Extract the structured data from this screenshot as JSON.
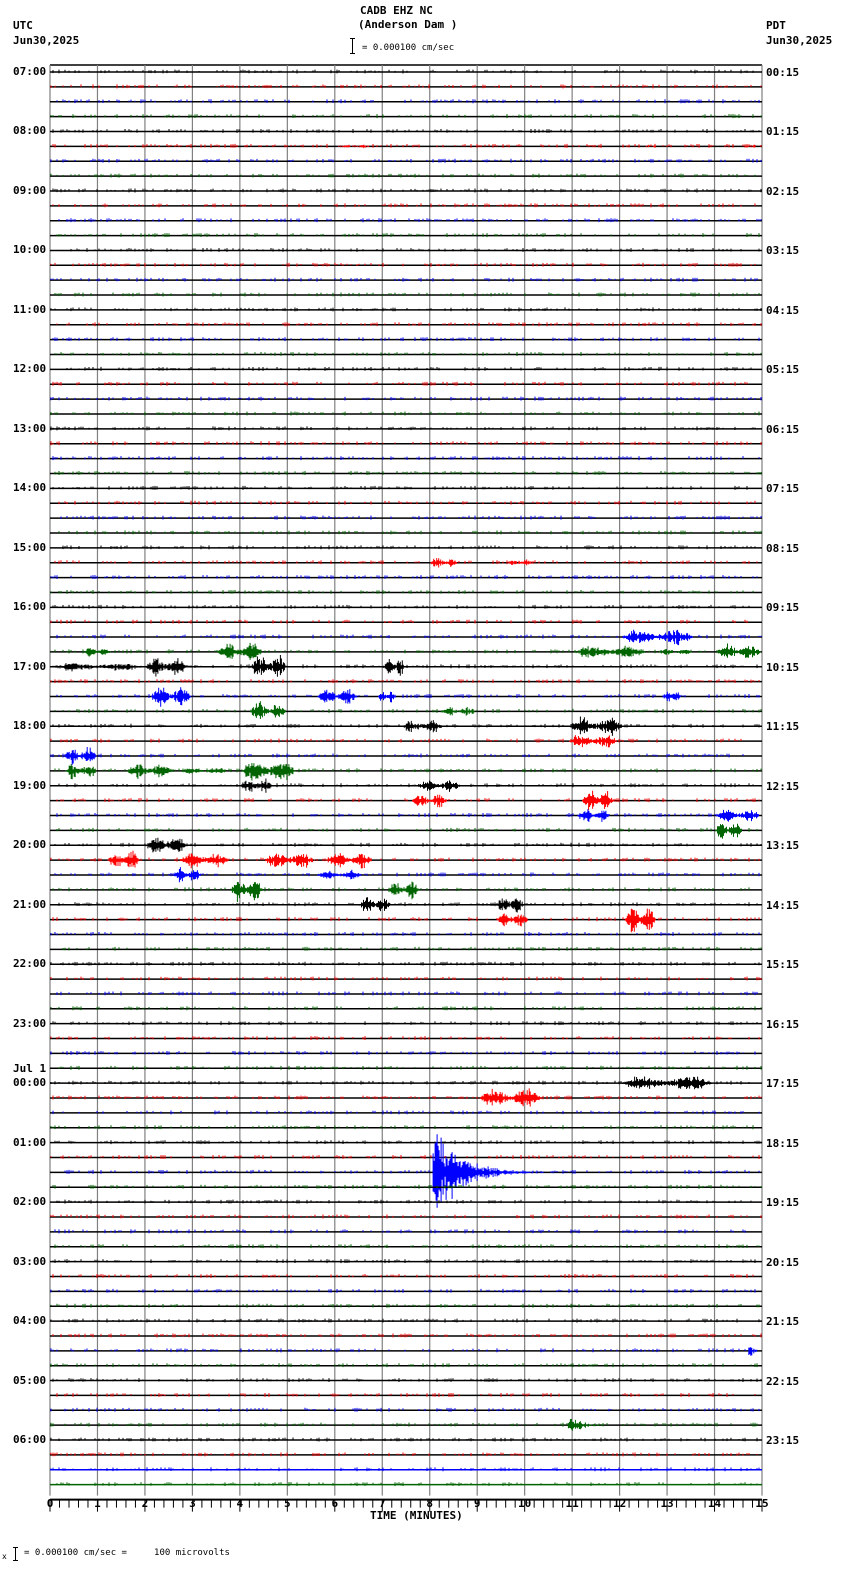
{
  "header": {
    "station": "CADB EHZ NC",
    "location": "(Anderson Dam )",
    "left_tz": "UTC",
    "left_date": "Jun30,2025",
    "right_tz": "PDT",
    "right_date": "Jun30,2025",
    "scale_label": "= 0.000100 cm/sec"
  },
  "footer": {
    "scale_text": "= 0.000100 cm/sec =     100 microvolts"
  },
  "chart_data": {
    "type": "line",
    "title": "CADB EHZ NC (Anderson Dam )",
    "subtitle": "= 0.000100 cm/sec",
    "xlabel": "TIME (MINUTES)",
    "ylabel": "",
    "xlim": [
      0,
      15
    ],
    "x_ticks": [
      "0",
      "1",
      "2",
      "3",
      "4",
      "5",
      "6",
      "7",
      "8",
      "9",
      "10",
      "11",
      "12",
      "13",
      "14",
      "15"
    ],
    "grid": true,
    "trace_minutes": 15,
    "trace_colors": [
      "#000000",
      "#ff0000",
      "#0000ff",
      "#006400"
    ],
    "left_labels": [
      {
        "row": 0,
        "text": "07:00"
      },
      {
        "row": 4,
        "text": "08:00"
      },
      {
        "row": 8,
        "text": "09:00"
      },
      {
        "row": 12,
        "text": "10:00"
      },
      {
        "row": 16,
        "text": "11:00"
      },
      {
        "row": 20,
        "text": "12:00"
      },
      {
        "row": 24,
        "text": "13:00"
      },
      {
        "row": 28,
        "text": "14:00"
      },
      {
        "row": 32,
        "text": "15:00"
      },
      {
        "row": 36,
        "text": "16:00"
      },
      {
        "row": 40,
        "text": "17:00"
      },
      {
        "row": 44,
        "text": "18:00"
      },
      {
        "row": 48,
        "text": "19:00"
      },
      {
        "row": 52,
        "text": "20:00"
      },
      {
        "row": 56,
        "text": "21:00"
      },
      {
        "row": 60,
        "text": "22:00"
      },
      {
        "row": 64,
        "text": "23:00"
      },
      {
        "row": 68,
        "text": "00:00",
        "date": "Jul 1"
      },
      {
        "row": 72,
        "text": "01:00"
      },
      {
        "row": 76,
        "text": "02:00"
      },
      {
        "row": 80,
        "text": "03:00"
      },
      {
        "row": 84,
        "text": "04:00"
      },
      {
        "row": 88,
        "text": "05:00"
      },
      {
        "row": 92,
        "text": "06:00"
      }
    ],
    "right_labels": [
      {
        "row": 0,
        "text": "00:15"
      },
      {
        "row": 4,
        "text": "01:15"
      },
      {
        "row": 8,
        "text": "02:15"
      },
      {
        "row": 12,
        "text": "03:15"
      },
      {
        "row": 16,
        "text": "04:15"
      },
      {
        "row": 20,
        "text": "05:15"
      },
      {
        "row": 24,
        "text": "06:15"
      },
      {
        "row": 28,
        "text": "07:15"
      },
      {
        "row": 32,
        "text": "08:15"
      },
      {
        "row": 36,
        "text": "09:15"
      },
      {
        "row": 40,
        "text": "10:15"
      },
      {
        "row": 44,
        "text": "11:15"
      },
      {
        "row": 48,
        "text": "12:15"
      },
      {
        "row": 52,
        "text": "13:15"
      },
      {
        "row": 56,
        "text": "14:15"
      },
      {
        "row": 60,
        "text": "15:15"
      },
      {
        "row": 64,
        "text": "16:15"
      },
      {
        "row": 68,
        "text": "17:15"
      },
      {
        "row": 72,
        "text": "18:15"
      },
      {
        "row": 76,
        "text": "19:15"
      },
      {
        "row": 80,
        "text": "20:15"
      },
      {
        "row": 84,
        "text": "21:15"
      },
      {
        "row": 88,
        "text": "22:15"
      },
      {
        "row": 92,
        "text": "23:15"
      }
    ],
    "row_count": 96,
    "events": [
      {
        "row": 5,
        "start_min": 6.0,
        "end_min": 6.8,
        "amp": 2
      },
      {
        "row": 5,
        "start_min": 12.5,
        "end_min": 12.8,
        "amp": 2
      },
      {
        "row": 5,
        "start_min": 14.6,
        "end_min": 14.9,
        "amp": 2
      },
      {
        "row": 33,
        "start_min": 8.0,
        "end_min": 8.6,
        "amp": 7
      },
      {
        "row": 33,
        "start_min": 9.6,
        "end_min": 10.2,
        "amp": 5
      },
      {
        "row": 38,
        "start_min": 12.0,
        "end_min": 13.6,
        "amp": 10
      },
      {
        "row": 39,
        "start_min": 0.7,
        "end_min": 1.3,
        "amp": 7
      },
      {
        "row": 39,
        "start_min": 3.5,
        "end_min": 4.5,
        "amp": 12
      },
      {
        "row": 39,
        "start_min": 11.0,
        "end_min": 12.6,
        "amp": 9
      },
      {
        "row": 39,
        "start_min": 12.8,
        "end_min": 13.6,
        "amp": 4
      },
      {
        "row": 39,
        "start_min": 14.0,
        "end_min": 15.0,
        "amp": 10
      },
      {
        "row": 40,
        "start_min": -0.1,
        "end_min": 2.0,
        "amp": 6
      },
      {
        "row": 40,
        "start_min": 2.0,
        "end_min": 2.9,
        "amp": 13
      },
      {
        "row": 40,
        "start_min": 4.2,
        "end_min": 5.0,
        "amp": 16
      },
      {
        "row": 40,
        "start_min": 7.0,
        "end_min": 7.5,
        "amp": 11
      },
      {
        "row": 42,
        "start_min": 2.1,
        "end_min": 3.0,
        "amp": 13
      },
      {
        "row": 42,
        "start_min": 5.6,
        "end_min": 6.5,
        "amp": 10
      },
      {
        "row": 42,
        "start_min": 6.9,
        "end_min": 7.3,
        "amp": 9
      },
      {
        "row": 42,
        "start_min": 12.9,
        "end_min": 13.3,
        "amp": 8
      },
      {
        "row": 43,
        "start_min": 4.2,
        "end_min": 5.0,
        "amp": 12
      },
      {
        "row": 43,
        "start_min": 8.2,
        "end_min": 9.0,
        "amp": 6
      },
      {
        "row": 44,
        "start_min": 7.4,
        "end_min": 8.3,
        "amp": 9
      },
      {
        "row": 44,
        "start_min": 10.9,
        "end_min": 12.1,
        "amp": 12
      },
      {
        "row": 45,
        "start_min": 10.9,
        "end_min": 12.0,
        "amp": 10
      },
      {
        "row": 46,
        "start_min": 0.3,
        "end_min": 1.0,
        "amp": 12
      },
      {
        "row": 47,
        "start_min": 0.3,
        "end_min": 1.0,
        "amp": 11
      },
      {
        "row": 47,
        "start_min": 1.6,
        "end_min": 2.6,
        "amp": 10
      },
      {
        "row": 47,
        "start_min": 2.7,
        "end_min": 3.8,
        "amp": 4
      },
      {
        "row": 47,
        "start_min": 4.0,
        "end_min": 5.2,
        "amp": 16
      },
      {
        "row": 48,
        "start_min": 4.0,
        "end_min": 4.7,
        "amp": 10
      },
      {
        "row": 48,
        "start_min": 7.7,
        "end_min": 8.7,
        "amp": 8
      },
      {
        "row": 49,
        "start_min": 7.6,
        "end_min": 8.4,
        "amp": 9
      },
      {
        "row": 49,
        "start_min": 11.2,
        "end_min": 11.9,
        "amp": 14
      },
      {
        "row": 50,
        "start_min": 11.1,
        "end_min": 11.8,
        "amp": 11
      },
      {
        "row": 50,
        "start_min": 14.0,
        "end_min": 15.0,
        "amp": 8
      },
      {
        "row": 51,
        "start_min": 14.0,
        "end_min": 14.6,
        "amp": 14
      },
      {
        "row": 52,
        "start_min": 2.0,
        "end_min": 2.9,
        "amp": 13
      },
      {
        "row": 53,
        "start_min": 1.2,
        "end_min": 1.9,
        "amp": 12
      },
      {
        "row": 53,
        "start_min": 2.7,
        "end_min": 3.8,
        "amp": 11
      },
      {
        "row": 53,
        "start_min": 4.5,
        "end_min": 5.6,
        "amp": 11
      },
      {
        "row": 53,
        "start_min": 5.8,
        "end_min": 6.8,
        "amp": 12
      },
      {
        "row": 54,
        "start_min": 2.6,
        "end_min": 3.2,
        "amp": 10
      },
      {
        "row": 54,
        "start_min": 5.6,
        "end_min": 6.6,
        "amp": 6
      },
      {
        "row": 55,
        "start_min": 3.8,
        "end_min": 4.5,
        "amp": 16
      },
      {
        "row": 55,
        "start_min": 7.1,
        "end_min": 7.8,
        "amp": 11
      },
      {
        "row": 56,
        "start_min": 6.5,
        "end_min": 7.2,
        "amp": 11
      },
      {
        "row": 56,
        "start_min": 9.4,
        "end_min": 10.0,
        "amp": 12
      },
      {
        "row": 57,
        "start_min": 9.4,
        "end_min": 10.1,
        "amp": 10
      },
      {
        "row": 57,
        "start_min": 12.1,
        "end_min": 12.8,
        "amp": 18
      },
      {
        "row": 68,
        "start_min": 12.0,
        "end_min": 14.0,
        "amp": 10
      },
      {
        "row": 69,
        "start_min": 9.0,
        "end_min": 10.4,
        "amp": 13
      },
      {
        "row": 74,
        "start_min": 8.05,
        "end_min": 10.5,
        "amp": 40,
        "decay": true
      },
      {
        "row": 86,
        "start_min": 14.7,
        "end_min": 15.0,
        "amp": 13,
        "decay": true
      },
      {
        "row": 91,
        "start_min": 10.9,
        "end_min": 12.0,
        "amp": 9,
        "decay": true
      }
    ]
  }
}
